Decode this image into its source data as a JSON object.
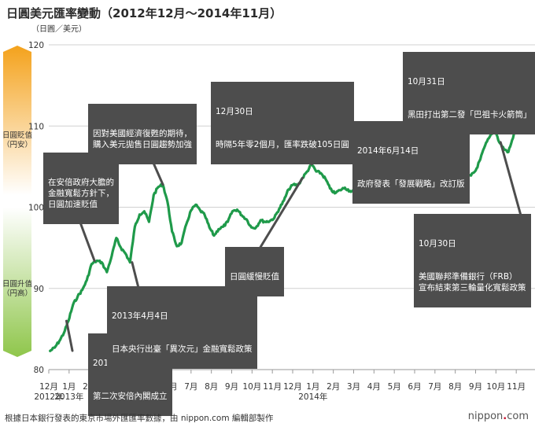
{
  "title": "日圓美元匯率變動（2012年12月～2014年11月）",
  "source": "根據日本銀行發表的東京市場外匯匯率數據，由 nippon.com 編輯部製作",
  "logo": {
    "prefix": "nippon",
    "suffix": "com"
  },
  "side_labels": {
    "weak_title": "日圓貶值",
    "weak_sub": "（円安）",
    "strong_title": "日圓升值",
    "strong_sub": "（円高）",
    "colors": {
      "top": "#f4a21c",
      "bottom": "#8fc64b"
    }
  },
  "annotations": [
    {
      "id": "a1",
      "date": "2012年12月26日",
      "text": "第二次安倍內閣成立"
    },
    {
      "id": "a2",
      "text": "在安倍政府大膽的\n金融寬鬆方針下，\n日圓加速貶值"
    },
    {
      "id": "a3",
      "date": "2013年4月4日",
      "text": "日本央行出臺「異次元」金融寬鬆政策"
    },
    {
      "id": "a4",
      "text": "因對美國經濟復甦的期待，\n購入美元拋售日圓趨勢加強"
    },
    {
      "id": "a5",
      "date": "12月30日",
      "text": "時隔5年零2個月，匯率跌破105日圓"
    },
    {
      "id": "a6",
      "text": "日圓緩慢貶值"
    },
    {
      "id": "a7",
      "date": "2014年6月14日",
      "text": "政府發表「發展戰略」改訂版"
    },
    {
      "id": "a8",
      "date": "10月30日",
      "text": "美國聯邦準備銀行（FRB）\n宣布結束第三輪量化寬鬆政策"
    },
    {
      "id": "a9",
      "date": "10月31日",
      "text": "黑田打出第二發「巴祖卡火箭筒」"
    }
  ],
  "chart_data": {
    "type": "line",
    "title": "日圓美元匯率變動（2012年12月～2014年11月）",
    "ylabel": "（日圓／美元）",
    "ylim": [
      80,
      120
    ],
    "yticks": [
      80,
      90,
      100,
      110,
      120
    ],
    "grid": true,
    "x_months": [
      "12月",
      "1月",
      "2月",
      "3月",
      "4月",
      "5月",
      "6月",
      "7月",
      "8月",
      "9月",
      "10月",
      "11月",
      "12月",
      "1月",
      "2月",
      "3月",
      "4月",
      "5月",
      "6月",
      "7月",
      "8月",
      "9月",
      "10月",
      "11月"
    ],
    "x_year_labels": [
      {
        "month_index": 0,
        "label": "2012年"
      },
      {
        "month_index": 1,
        "label": "2013年"
      },
      {
        "month_index": 13,
        "label": "2014年"
      }
    ],
    "series": [
      {
        "color": "#1f9a4a",
        "x": [
          "2012-12-03",
          "2012-12-10",
          "2012-12-17",
          "2012-12-24",
          "2012-12-31",
          "2013-01-07",
          "2013-01-14",
          "2013-01-21",
          "2013-01-28",
          "2013-02-04",
          "2013-02-11",
          "2013-02-18",
          "2013-02-25",
          "2013-03-04",
          "2013-03-11",
          "2013-03-18",
          "2013-03-25",
          "2013-04-01",
          "2013-04-08",
          "2013-04-15",
          "2013-04-22",
          "2013-04-29",
          "2013-05-06",
          "2013-05-13",
          "2013-05-20",
          "2013-05-27",
          "2013-06-03",
          "2013-06-10",
          "2013-06-17",
          "2013-06-24",
          "2013-07-01",
          "2013-07-08",
          "2013-07-15",
          "2013-07-22",
          "2013-07-29",
          "2013-08-05",
          "2013-08-12",
          "2013-08-19",
          "2013-08-26",
          "2013-09-02",
          "2013-09-09",
          "2013-09-16",
          "2013-09-23",
          "2013-09-30",
          "2013-10-07",
          "2013-10-14",
          "2013-10-21",
          "2013-10-28",
          "2013-11-04",
          "2013-11-11",
          "2013-11-18",
          "2013-11-25",
          "2013-12-02",
          "2013-12-09",
          "2013-12-16",
          "2013-12-23",
          "2013-12-30",
          "2014-01-06",
          "2014-01-13",
          "2014-01-20",
          "2014-01-27",
          "2014-02-03",
          "2014-02-10",
          "2014-02-17",
          "2014-02-24",
          "2014-03-03",
          "2014-03-10",
          "2014-03-17",
          "2014-03-24",
          "2014-03-31",
          "2014-04-07",
          "2014-04-14",
          "2014-04-21",
          "2014-04-28",
          "2014-05-05",
          "2014-05-12",
          "2014-05-19",
          "2014-05-26",
          "2014-06-02",
          "2014-06-09",
          "2014-06-16",
          "2014-06-23",
          "2014-06-30",
          "2014-07-07",
          "2014-07-14",
          "2014-07-21",
          "2014-07-28",
          "2014-08-04",
          "2014-08-11",
          "2014-08-18",
          "2014-08-25",
          "2014-09-01",
          "2014-09-08",
          "2014-09-15",
          "2014-09-22",
          "2014-09-29",
          "2014-10-06",
          "2014-10-13",
          "2014-10-20",
          "2014-10-27",
          "2014-11-03",
          "2014-11-10",
          "2014-11-17",
          "2014-11-24"
        ],
        "values": [
          82.3,
          82.7,
          83.5,
          84.5,
          86.0,
          88.0,
          89.0,
          89.8,
          91.0,
          93.0,
          93.4,
          93.2,
          92.0,
          94.0,
          96.2,
          95.0,
          94.3,
          93.2,
          97.6,
          99.1,
          99.5,
          98.2,
          101.5,
          102.5,
          102.8,
          100.7,
          97.0,
          95.2,
          95.6,
          97.9,
          99.6,
          100.3,
          99.6,
          99.0,
          97.5,
          96.5,
          97.3,
          97.6,
          98.2,
          99.5,
          99.7,
          99.0,
          98.5,
          97.5,
          97.5,
          98.4,
          98.2,
          98.3,
          98.7,
          99.8,
          100.8,
          102.2,
          102.8,
          102.7,
          103.6,
          104.4,
          105.3,
          104.4,
          104.2,
          103.5,
          102.3,
          101.7,
          102.1,
          102.4,
          102.0,
          101.9,
          103.0,
          102.3,
          102.4,
          103.3,
          102.4,
          101.8,
          102.4,
          102.2,
          101.8,
          101.7,
          101.4,
          101.7,
          102.4,
          102.4,
          101.9,
          101.8,
          101.6,
          101.8,
          101.5,
          101.5,
          102.8,
          102.4,
          102.4,
          103.8,
          103.9,
          104.5,
          105.9,
          107.6,
          108.7,
          109.7,
          108.0,
          107.2,
          106.8,
          108.5,
          111.5,
          114.6,
          116.6,
          117.6
        ]
      }
    ]
  }
}
